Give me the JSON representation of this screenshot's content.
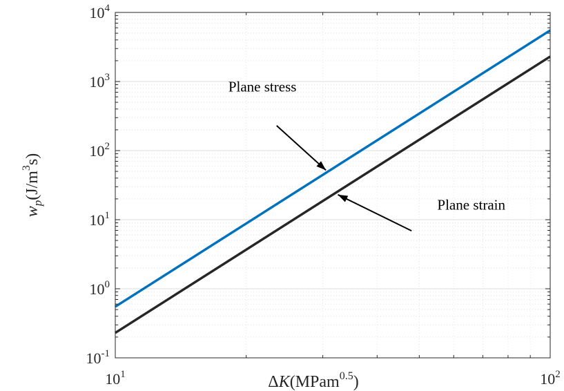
{
  "chart_data": {
    "type": "line",
    "xscale": "log",
    "yscale": "log",
    "xlim": [
      10,
      100
    ],
    "ylim": [
      0.1,
      10000
    ],
    "grid": true,
    "minor_grid": true,
    "xlabel": {
      "prefix": "Δ",
      "var": "K",
      "unit_open": "(MPam",
      "unit_sup": "0.5",
      "unit_close": ")"
    },
    "ylabel": {
      "var": "w",
      "sub": "p",
      "unit_open": "(J/m",
      "unit_sup": "3",
      "unit_close": "s)"
    },
    "xticks": [
      {
        "value": 10,
        "base": "10",
        "exp": "1"
      },
      {
        "value": 100,
        "base": "10",
        "exp": "2"
      }
    ],
    "yticks": [
      {
        "value": 0.1,
        "base": "10",
        "exp": "-1"
      },
      {
        "value": 1,
        "base": "10",
        "exp": "0"
      },
      {
        "value": 10,
        "base": "10",
        "exp": "1"
      },
      {
        "value": 100,
        "base": "10",
        "exp": "2"
      },
      {
        "value": 1000,
        "base": "10",
        "exp": "3"
      },
      {
        "value": 10000,
        "base": "10",
        "exp": "4"
      }
    ],
    "series": [
      {
        "x": [
          10,
          100
        ],
        "y": [
          0.55,
          5500
        ],
        "color": "#0072BD"
      },
      {
        "x": [
          10,
          100
        ],
        "y": [
          0.23,
          2300
        ],
        "color": "#262626"
      }
    ],
    "annotations": [
      {
        "text": "Plane stress",
        "text_pos": {
          "x": 18.2,
          "y": 720
        },
        "arrow_from": {
          "x": 23.5,
          "y": 230
        },
        "arrow_to": {
          "x": 30.5,
          "y": 52
        }
      },
      {
        "text": "Plane strain",
        "text_pos": {
          "x": 55,
          "y": 14
        },
        "arrow_from": {
          "x": 48,
          "y": 6.9
        },
        "arrow_to": {
          "x": 32.5,
          "y": 23
        }
      }
    ]
  }
}
